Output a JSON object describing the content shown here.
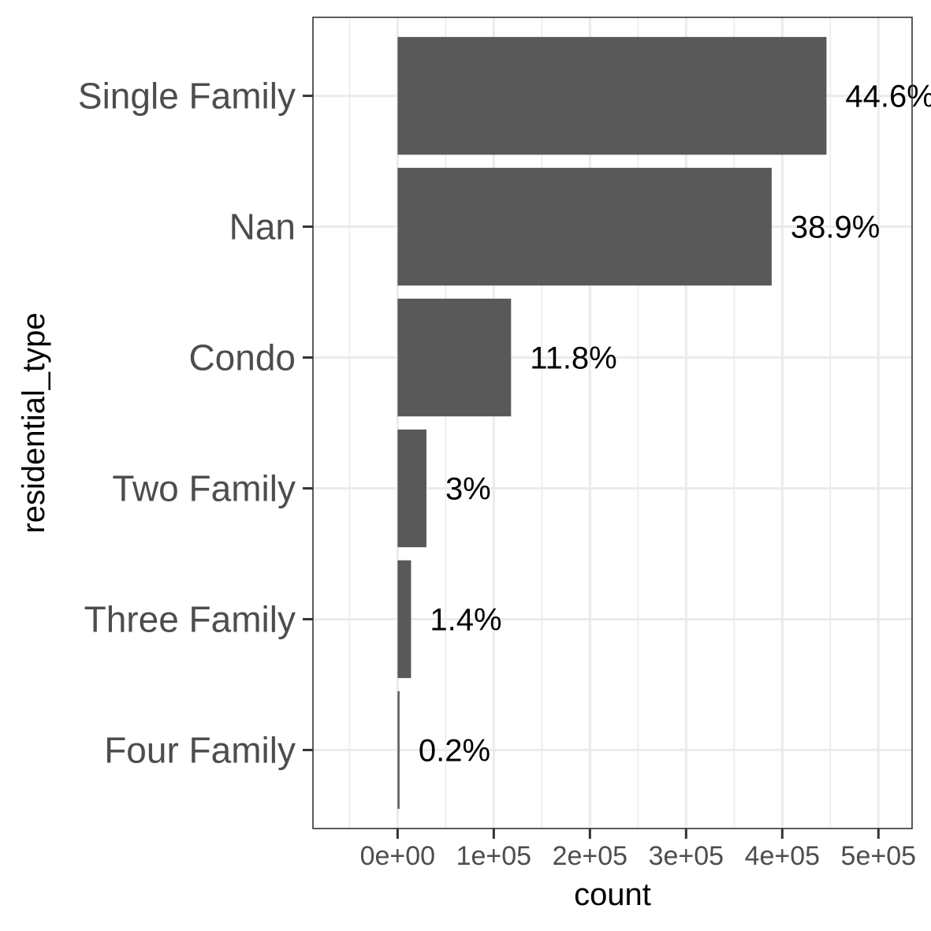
{
  "chart_data": {
    "type": "bar",
    "orientation": "horizontal",
    "categories": [
      "Single Family",
      "Nan",
      "Condo",
      "Two Family",
      "Three Family",
      "Four Family"
    ],
    "values": [
      446000,
      389000,
      118000,
      30000,
      14000,
      2000
    ],
    "data_labels": [
      "44.6%",
      "38.9%",
      "11.8%",
      "3%",
      "1.4%",
      "0.2%"
    ],
    "xlabel": "count",
    "ylabel": "residential_type",
    "xlim": [
      -88000,
      535000
    ],
    "x_ticks": [
      0,
      100000,
      200000,
      300000,
      400000,
      500000
    ],
    "x_tick_labels": [
      "0e+00",
      "1e+05",
      "2e+05",
      "3e+05",
      "4e+05",
      "5e+05"
    ],
    "grid": true,
    "theme": "bw",
    "colors": {
      "bar": "#595959",
      "grid": "#ebebeb",
      "panel_border": "#333333",
      "tick_text": "#4d4d4d"
    }
  }
}
